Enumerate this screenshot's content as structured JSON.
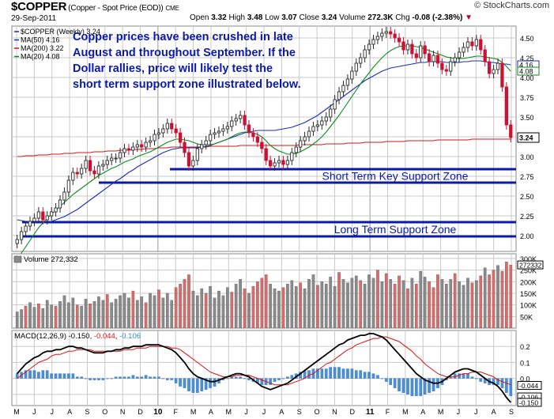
{
  "header": {
    "symbol": "$COPPER",
    "description": "(Copper - Spot Price (EOD))",
    "exchange": "CME",
    "date": "29-Sep-2011",
    "open_label": "Open",
    "open": "3.32",
    "high_label": "High",
    "high": "3.48",
    "low_label": "Low",
    "low": "3.07",
    "close_label": "Close",
    "close": "3.24",
    "volume_label": "Volume",
    "volume": "272.3K",
    "chg_label": "Chg",
    "chg": "-0.08 (-2.38%)",
    "copyright": "© StockCharts.com"
  },
  "colors": {
    "up": "#2b2b2b",
    "down": "#cc1133",
    "ma50": "#1a2fb3",
    "ma200": "#cc1a1a",
    "ma20": "#0a8a1e",
    "support": "#0b1aa8",
    "annotation": "#0b1aa8",
    "vol_up": "#8a8a8a",
    "vol_down": "#d96b6b",
    "macd_line": "#000000",
    "signal_line": "#dd1111",
    "histogram": "#4a8fd6",
    "grid": "#c9c9c9"
  },
  "chart_data": [
    {
      "type": "candlestick",
      "title": "$COPPER (Weekly) 3.24",
      "legend": [
        {
          "name": "$COPPER (Weekly) 3.24",
          "color": "#1a2fb3"
        },
        {
          "name": "MA(50) 4.16",
          "color": "#1a2fb3"
        },
        {
          "name": "MA(200) 3.22",
          "color": "#cc1a1a"
        },
        {
          "name": "MA(20) 4.08",
          "color": "#0a8a1e"
        }
      ],
      "ylim": [
        1.8,
        4.65
      ],
      "yticks": [
        "4.50",
        "4.25",
        "4.00",
        "3.75",
        "3.50",
        "3.25",
        "3.00",
        "2.75",
        "2.50",
        "2.25",
        "2.00"
      ],
      "ytick_values": [
        4.5,
        4.25,
        4.0,
        3.75,
        3.5,
        3.25,
        3.0,
        2.75,
        2.5,
        2.25,
        2.0
      ],
      "price_tags": [
        {
          "label": "4.16",
          "value": 4.16,
          "color": "#1a2fb3"
        },
        {
          "label": "4.08",
          "value": 4.08,
          "color": "#0a8a1e"
        },
        {
          "label": "3.24",
          "value": 3.24,
          "color": "#000000"
        }
      ],
      "x_month_labels": [
        "M",
        "J",
        "J",
        "A",
        "S",
        "O",
        "N",
        "D",
        "10",
        "F",
        "M",
        "A",
        "M",
        "J",
        "J",
        "A",
        "S",
        "O",
        "N",
        "D",
        "11",
        "F",
        "M",
        "A",
        "M",
        "J",
        "J",
        "A",
        "S"
      ],
      "weekly_closes": [
        1.95,
        2.05,
        2.12,
        2.18,
        2.22,
        2.3,
        2.2,
        2.25,
        2.3,
        2.35,
        2.45,
        2.55,
        2.7,
        2.8,
        2.78,
        2.85,
        2.95,
        2.82,
        2.78,
        2.88,
        2.9,
        2.95,
        2.98,
        2.98,
        3.05,
        3.1,
        3.08,
        3.12,
        3.15,
        3.12,
        3.18,
        3.2,
        3.28,
        3.3,
        3.35,
        3.42,
        3.35,
        3.3,
        3.18,
        3.05,
        2.88,
        2.95,
        3.1,
        3.15,
        3.2,
        3.28,
        3.3,
        3.32,
        3.35,
        3.38,
        3.45,
        3.48,
        3.52,
        3.4,
        3.3,
        3.25,
        3.18,
        3.1,
        2.95,
        2.88,
        2.92,
        2.95,
        2.9,
        2.95,
        3.05,
        3.12,
        3.2,
        3.25,
        3.32,
        3.38,
        3.4,
        3.45,
        3.5,
        3.6,
        3.72,
        3.82,
        3.9,
        3.98,
        4.08,
        4.18,
        4.25,
        4.35,
        4.42,
        4.48,
        4.52,
        4.56,
        4.58,
        4.55,
        4.5,
        4.45,
        4.35,
        4.42,
        4.3,
        4.25,
        4.4,
        4.3,
        4.2,
        4.28,
        4.18,
        4.1,
        4.08,
        4.2,
        4.25,
        4.32,
        4.38,
        4.45,
        4.4,
        4.48,
        4.35,
        4.2,
        4.05,
        4.1,
        4.18,
        3.88,
        3.4,
        3.24
      ],
      "ma50": [
        2.2,
        2.19,
        2.18,
        2.17,
        2.16,
        2.16,
        2.16,
        2.17,
        2.18,
        2.2,
        2.22,
        2.24,
        2.27,
        2.3,
        2.33,
        2.37,
        2.41,
        2.45,
        2.49,
        2.53,
        2.57,
        2.61,
        2.65,
        2.69,
        2.72,
        2.76,
        2.8,
        2.83,
        2.87,
        2.9,
        2.93,
        2.96,
        2.99,
        3.02,
        3.05,
        3.07,
        3.09,
        3.1,
        3.11,
        3.11,
        3.11,
        3.11,
        3.11,
        3.12,
        3.13,
        3.14,
        3.16,
        3.18,
        3.2,
        3.22,
        3.24,
        3.26,
        3.28,
        3.3,
        3.31,
        3.32,
        3.33,
        3.33,
        3.33,
        3.33,
        3.33,
        3.34,
        3.35,
        3.36,
        3.37,
        3.39,
        3.41,
        3.43,
        3.46,
        3.49,
        3.52,
        3.56,
        3.6,
        3.64,
        3.68,
        3.72,
        3.76,
        3.8,
        3.84,
        3.88,
        3.92,
        3.96,
        3.99,
        4.02,
        4.05,
        4.08,
        4.1,
        4.12,
        4.13,
        4.14,
        4.15,
        4.16,
        4.17,
        4.18,
        4.19,
        4.19,
        4.2,
        4.2,
        4.2,
        4.2,
        4.19,
        4.19,
        4.19,
        4.19,
        4.2,
        4.2,
        4.21,
        4.21,
        4.21,
        4.2,
        4.19,
        4.19,
        4.18,
        4.17,
        4.17,
        4.16
      ],
      "ma200": [
        3.0,
        3.0,
        3.01,
        3.01,
        3.01,
        3.02,
        3.02,
        3.02,
        3.03,
        3.03,
        3.03,
        3.04,
        3.04,
        3.04,
        3.05,
        3.05,
        3.05,
        3.05,
        3.06,
        3.06,
        3.06,
        3.07,
        3.07,
        3.07,
        3.08,
        3.08,
        3.08,
        3.09,
        3.09,
        3.09,
        3.1,
        3.1,
        3.1,
        3.11,
        3.11,
        3.11,
        3.12,
        3.12,
        3.12,
        3.12,
        3.12,
        3.12,
        3.12,
        3.12,
        3.12,
        3.13,
        3.13,
        3.13,
        3.13,
        3.13,
        3.13,
        3.13,
        3.14,
        3.14,
        3.14,
        3.14,
        3.14,
        3.14,
        3.14,
        3.14,
        3.14,
        3.14,
        3.14,
        3.14,
        3.14,
        3.14,
        3.15,
        3.15,
        3.15,
        3.15,
        3.15,
        3.15,
        3.16,
        3.16,
        3.16,
        3.16,
        3.16,
        3.17,
        3.17,
        3.17,
        3.17,
        3.18,
        3.18,
        3.18,
        3.18,
        3.18,
        3.19,
        3.19,
        3.19,
        3.19,
        3.19,
        3.2,
        3.2,
        3.2,
        3.2,
        3.2,
        3.2,
        3.2,
        3.21,
        3.21,
        3.21,
        3.21,
        3.21,
        3.21,
        3.21,
        3.21,
        3.22,
        3.22,
        3.22,
        3.22,
        3.22,
        3.22,
        3.22,
        3.22,
        3.22,
        3.22
      ],
      "ma20": [
        1.7,
        1.78,
        1.86,
        1.94,
        2.02,
        2.1,
        2.16,
        2.22,
        2.27,
        2.32,
        2.37,
        2.42,
        2.47,
        2.52,
        2.56,
        2.6,
        2.64,
        2.68,
        2.72,
        2.76,
        2.79,
        2.82,
        2.85,
        2.87,
        2.9,
        2.93,
        2.95,
        2.97,
        3.0,
        3.02,
        3.04,
        3.06,
        3.09,
        3.12,
        3.15,
        3.18,
        3.2,
        3.22,
        3.22,
        3.21,
        3.2,
        3.18,
        3.16,
        3.15,
        3.15,
        3.15,
        3.16,
        3.18,
        3.2,
        3.22,
        3.25,
        3.28,
        3.3,
        3.31,
        3.31,
        3.3,
        3.28,
        3.25,
        3.2,
        3.14,
        3.1,
        3.07,
        3.05,
        3.03,
        3.03,
        3.04,
        3.06,
        3.09,
        3.12,
        3.16,
        3.2,
        3.25,
        3.31,
        3.38,
        3.45,
        3.52,
        3.6,
        3.68,
        3.76,
        3.84,
        3.92,
        3.99,
        4.06,
        4.13,
        4.19,
        4.25,
        4.3,
        4.34,
        4.37,
        4.39,
        4.4,
        4.4,
        4.4,
        4.39,
        4.38,
        4.36,
        4.34,
        4.32,
        4.3,
        4.28,
        4.26,
        4.25,
        4.24,
        4.24,
        4.24,
        4.25,
        4.26,
        4.27,
        4.27,
        4.26,
        4.25,
        4.24,
        4.23,
        4.19,
        4.14,
        4.08
      ],
      "annotations": [
        {
          "text": "Copper prices have been crushed in late",
          "line": 1
        },
        {
          "text": "August and throughout September. If the",
          "line": 2
        },
        {
          "text": "Dollar rallies, price will likely test the",
          "line": 3
        },
        {
          "text": "short term support zone illustrated below.",
          "line": 4
        }
      ],
      "support_zones": [
        {
          "label": "Short Term Key Support Zone",
          "upper": 2.84,
          "lower": 2.67
        },
        {
          "label": "Long Term Support Zone",
          "upper": 2.17,
          "lower": 1.99
        }
      ]
    },
    {
      "type": "bar",
      "title": "Volume 272,332",
      "yticks": [
        "300K",
        "250K",
        "200K",
        "150K",
        "100K",
        "50K"
      ],
      "ytick_values": [
        300000,
        250000,
        200000,
        150000,
        100000,
        50000
      ],
      "ylim": [
        0,
        320000
      ],
      "last_value_tag": "272332",
      "values": [
        70,
        80,
        95,
        110,
        90,
        105,
        85,
        120,
        100,
        95,
        115,
        140,
        110,
        130,
        100,
        95,
        125,
        105,
        115,
        135,
        120,
        145,
        110,
        125,
        140,
        150,
        130,
        160,
        120,
        135,
        110,
        150,
        140,
        165,
        130,
        150,
        120,
        175,
        190,
        210,
        230,
        160,
        140,
        170,
        150,
        180,
        130,
        160,
        140,
        175,
        155,
        190,
        210,
        170,
        150,
        180,
        200,
        215,
        230,
        190,
        170,
        160,
        175,
        190,
        205,
        180,
        195,
        170,
        210,
        230,
        185,
        200,
        190,
        220,
        180,
        240,
        210,
        195,
        215,
        225,
        205,
        190,
        230,
        215,
        250,
        200,
        235,
        210,
        190,
        225,
        205,
        170,
        215,
        190,
        245,
        220,
        200,
        175,
        230,
        210,
        190,
        210,
        235,
        200,
        185,
        215,
        195,
        205,
        225,
        260,
        230,
        250,
        270,
        245,
        285,
        272
      ],
      "down_weeks": [
        2,
        5,
        9,
        14,
        17,
        21,
        27,
        30,
        33,
        37,
        38,
        39,
        40,
        44,
        50,
        53,
        55,
        56,
        57,
        58,
        62,
        66,
        70,
        75,
        80,
        84,
        86,
        88,
        89,
        91,
        93,
        96,
        97,
        98,
        102,
        106,
        108,
        110,
        111,
        113,
        114,
        115
      ],
      "units": "thousands"
    },
    {
      "type": "line",
      "title": "MACD(12,26,9)",
      "values_text": [
        "-0.150",
        "-0.044",
        "-0.106"
      ],
      "yticks": [
        "0.2",
        "0.1",
        "0.0",
        "-0.1"
      ],
      "ytick_values": [
        0.2,
        0.1,
        0.0,
        -0.1
      ],
      "ylim": [
        -0.17,
        0.3
      ],
      "tags": [
        {
          "label": "-0.044",
          "value": -0.044
        },
        {
          "label": "-0.106",
          "value": -0.106
        },
        {
          "label": "-0.150",
          "value": -0.15
        }
      ],
      "macd": [
        0.03,
        0.06,
        0.09,
        0.11,
        0.13,
        0.14,
        0.16,
        0.17,
        0.17,
        0.18,
        0.18,
        0.19,
        0.2,
        0.2,
        0.19,
        0.19,
        0.18,
        0.17,
        0.16,
        0.16,
        0.16,
        0.17,
        0.17,
        0.18,
        0.18,
        0.19,
        0.19,
        0.2,
        0.2,
        0.2,
        0.21,
        0.21,
        0.21,
        0.21,
        0.2,
        0.19,
        0.18,
        0.16,
        0.13,
        0.1,
        0.06,
        0.03,
        0.01,
        0.0,
        -0.01,
        -0.02,
        -0.02,
        -0.01,
        0.0,
        0.01,
        0.02,
        0.03,
        0.03,
        0.02,
        0.01,
        -0.01,
        -0.03,
        -0.05,
        -0.06,
        -0.07,
        -0.06,
        -0.05,
        -0.04,
        -0.03,
        -0.01,
        0.01,
        0.03,
        0.05,
        0.07,
        0.09,
        0.11,
        0.13,
        0.15,
        0.17,
        0.19,
        0.21,
        0.22,
        0.24,
        0.25,
        0.26,
        0.27,
        0.27,
        0.28,
        0.28,
        0.27,
        0.26,
        0.24,
        0.21,
        0.18,
        0.15,
        0.12,
        0.09,
        0.06,
        0.03,
        0.01,
        -0.01,
        -0.02,
        -0.03,
        -0.03,
        -0.02,
        0.0,
        0.02,
        0.04,
        0.05,
        0.06,
        0.06,
        0.05,
        0.04,
        0.02,
        0.0,
        -0.02,
        -0.03,
        -0.05,
        -0.08,
        -0.12,
        -0.15
      ],
      "signal": [
        0.0,
        0.02,
        0.04,
        0.06,
        0.08,
        0.1,
        0.11,
        0.12,
        0.14,
        0.15,
        0.15,
        0.16,
        0.17,
        0.17,
        0.18,
        0.18,
        0.18,
        0.18,
        0.17,
        0.17,
        0.17,
        0.17,
        0.17,
        0.17,
        0.17,
        0.18,
        0.18,
        0.18,
        0.19,
        0.19,
        0.19,
        0.2,
        0.2,
        0.2,
        0.2,
        0.2,
        0.19,
        0.19,
        0.18,
        0.16,
        0.14,
        0.12,
        0.1,
        0.08,
        0.06,
        0.04,
        0.03,
        0.02,
        0.01,
        0.01,
        0.01,
        0.02,
        0.02,
        0.02,
        0.02,
        0.01,
        0.0,
        -0.01,
        -0.02,
        -0.03,
        -0.04,
        -0.04,
        -0.04,
        -0.04,
        -0.03,
        -0.02,
        -0.01,
        0.0,
        0.02,
        0.03,
        0.05,
        0.07,
        0.09,
        0.1,
        0.12,
        0.14,
        0.16,
        0.18,
        0.19,
        0.21,
        0.22,
        0.23,
        0.24,
        0.25,
        0.25,
        0.26,
        0.26,
        0.25,
        0.24,
        0.23,
        0.21,
        0.19,
        0.17,
        0.14,
        0.12,
        0.09,
        0.07,
        0.05,
        0.03,
        0.02,
        0.01,
        0.01,
        0.01,
        0.02,
        0.03,
        0.03,
        0.04,
        0.04,
        0.04,
        0.03,
        0.02,
        0.01,
        -0.01,
        -0.02,
        -0.03,
        -0.04
      ]
    }
  ]
}
